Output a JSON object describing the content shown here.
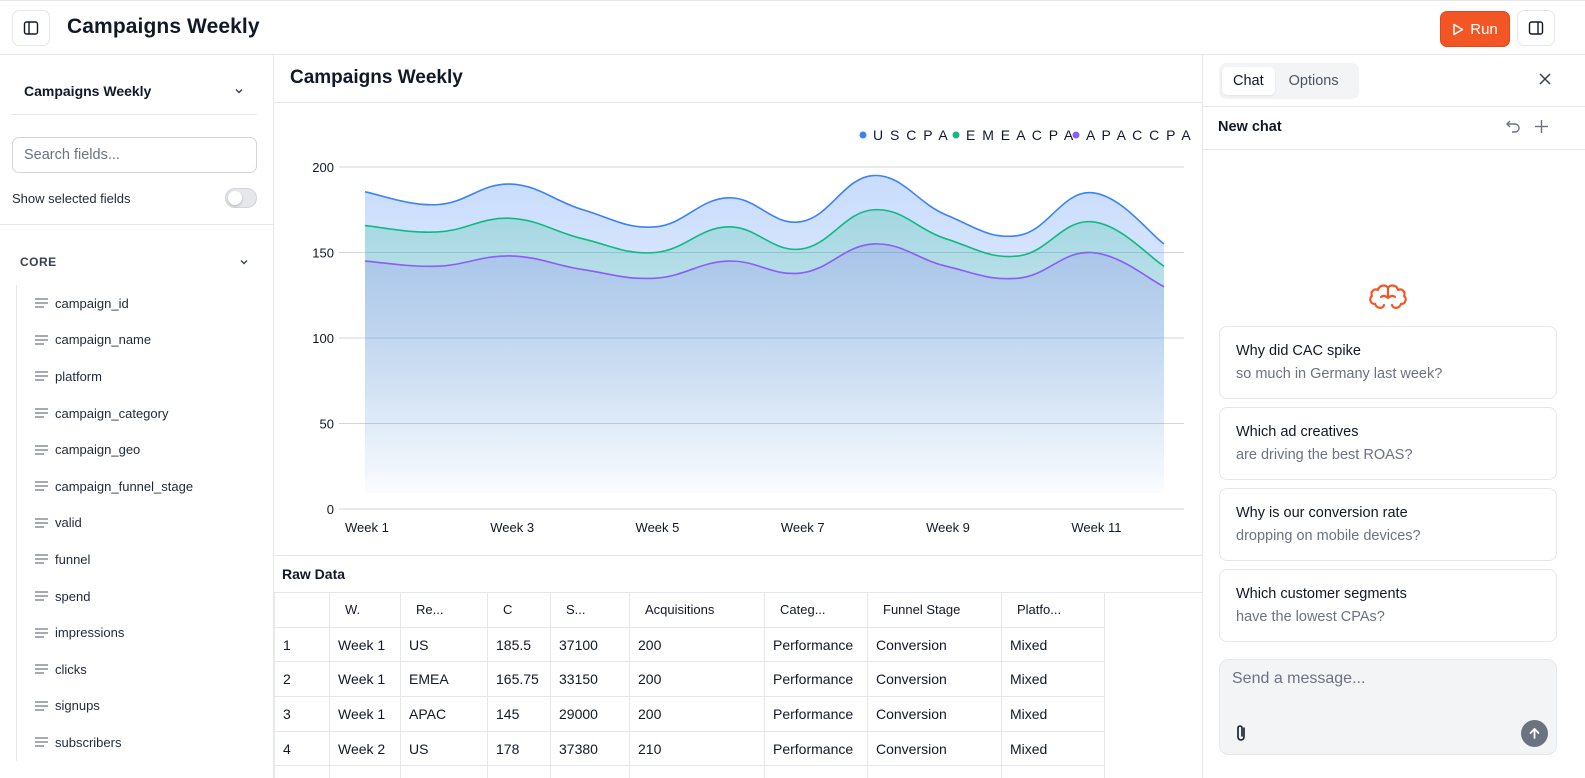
{
  "app": {
    "title": "Campaigns Weekly",
    "run_label": "Run"
  },
  "sidebar": {
    "dataset": "Campaigns Weekly",
    "search_placeholder": "Search fields...",
    "show_selected_label": "Show selected fields",
    "show_selected_on": false,
    "section": "CORE",
    "fields": [
      {
        "label": "campaign_id"
      },
      {
        "label": "campaign_name"
      },
      {
        "label": "platform"
      },
      {
        "label": "campaign_category"
      },
      {
        "label": "campaign_geo"
      },
      {
        "label": "campaign_funnel_stage"
      },
      {
        "label": "valid"
      },
      {
        "label": "funnel"
      },
      {
        "label": "spend"
      },
      {
        "label": "impressions"
      },
      {
        "label": "clicks"
      },
      {
        "label": "signups"
      },
      {
        "label": "subscribers"
      }
    ]
  },
  "main": {
    "title": "Campaigns Weekly",
    "raw_label": "Raw Data"
  },
  "chart_data": {
    "type": "area",
    "x": [
      "Week 1",
      "Week 2",
      "Week 3",
      "Week 4",
      "Week 5",
      "Week 6",
      "Week 7",
      "Week 8",
      "Week 9",
      "Week 10",
      "Week 11",
      "Week 12"
    ],
    "xticks": [
      "Week 1",
      "Week 3",
      "Week 5",
      "Week 7",
      "Week 9",
      "Week 11"
    ],
    "yticks": [
      0,
      50,
      100,
      150,
      200
    ],
    "ylim": [
      0,
      200
    ],
    "grid": true,
    "legend": "top-right",
    "series": [
      {
        "name": "U S C P A",
        "color": "#3b82f6",
        "values": [
          185.5,
          178,
          190,
          175,
          165,
          182,
          168,
          195,
          172,
          160,
          185,
          155
        ]
      },
      {
        "name": "E M E A C P A",
        "color": "#10b981",
        "values": [
          165.75,
          162,
          170,
          158,
          150,
          165,
          152,
          175,
          158,
          148,
          168,
          142
        ]
      },
      {
        "name": "A P A C C P A",
        "color": "#8b5cf6",
        "values": [
          145,
          142,
          148,
          140,
          135,
          145,
          138,
          155,
          142,
          135,
          150,
          130
        ]
      }
    ]
  },
  "table": {
    "headers": [
      "",
      "W.",
      "Re...",
      "C",
      "S...",
      "Acquisitions",
      "Categ...",
      "Funnel Stage",
      "Platfo..."
    ],
    "rows": [
      [
        "1",
        "Week 1",
        "US",
        "185.5",
        "37100",
        "200",
        "Performance",
        "Conversion",
        "Mixed"
      ],
      [
        "2",
        "Week 1",
        "EMEA",
        "165.75",
        "33150",
        "200",
        "Performance",
        "Conversion",
        "Mixed"
      ],
      [
        "3",
        "Week 1",
        "APAC",
        "145",
        "29000",
        "200",
        "Performance",
        "Conversion",
        "Mixed"
      ],
      [
        "4",
        "Week 2",
        "US",
        "178",
        "37380",
        "210",
        "Performance",
        "Conversion",
        "Mixed"
      ],
      [
        "",
        "",
        "",
        "",
        "",
        "",
        "",
        "",
        ""
      ]
    ]
  },
  "chat": {
    "tabs": [
      "Chat",
      "Options"
    ],
    "active_tab": "Chat",
    "new_chat_label": "New chat",
    "suggestions": [
      {
        "l1": "Why did CAC spike",
        "l2": "so much in Germany last week?"
      },
      {
        "l1": "Which ad creatives",
        "l2": "are driving the best ROAS?"
      },
      {
        "l1": "Why is our conversion rate",
        "l2": "dropping on mobile devices?"
      },
      {
        "l1": "Which customer segments",
        "l2": "have the lowest CPAs?"
      }
    ],
    "input_placeholder": "Send a message..."
  },
  "colors": {
    "accent": "#f25624",
    "us": "#3b82f6",
    "emea": "#10b981",
    "apac": "#8b5cf6"
  },
  "icons": {
    "sidebar_toggle": "panel-left-icon",
    "panel_toggle": "panel-right-icon",
    "run": "play-icon",
    "chevron": "chevron-down-icon",
    "field": "text-lines-icon",
    "close": "close-icon",
    "undo": "undo-icon",
    "add": "plus-icon",
    "brain": "brain-icon",
    "attach": "paperclip-icon",
    "send": "arrow-up-icon"
  }
}
